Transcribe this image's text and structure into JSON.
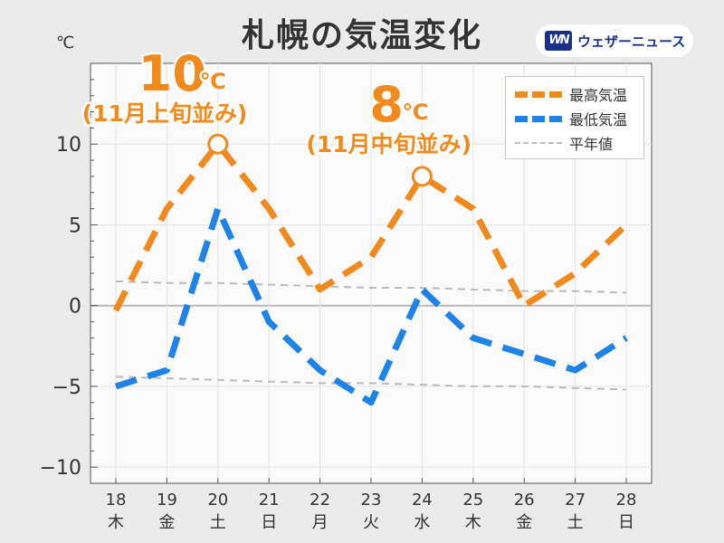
{
  "header": {
    "title": "札幌の気温変化",
    "unit": "℃",
    "logo_mark": "WN",
    "logo_text": "ウェザーニュース"
  },
  "legend": [
    {
      "label": "最高気温",
      "color": "#f08a1c",
      "style": "dashed-thick"
    },
    {
      "label": "最低気温",
      "color": "#1e82e6",
      "style": "dashed-thick"
    },
    {
      "label": "平年値",
      "color": "#bbbbbb",
      "style": "dashed-thin"
    }
  ],
  "callouts": [
    {
      "value": "10",
      "unit": "℃",
      "note": "(11月上旬並み)",
      "x_index": 2,
      "y": 10
    },
    {
      "value": "8",
      "unit": "℃",
      "note": "(11月中旬並み)",
      "x_index": 6,
      "y": 8
    }
  ],
  "chart_data": {
    "type": "line",
    "categories": [
      "18",
      "19",
      "20",
      "21",
      "22",
      "23",
      "24",
      "25",
      "26",
      "27",
      "28"
    ],
    "weekdays": [
      "木",
      "金",
      "土",
      "日",
      "月",
      "火",
      "水",
      "木",
      "金",
      "土",
      "日"
    ],
    "weekday_colors": [
      "#333333",
      "#333333",
      "#2a7fd4",
      "#d83535",
      "#333333",
      "#333333",
      "#333333",
      "#333333",
      "#333333",
      "#2a7fd4",
      "#d83535"
    ],
    "series": [
      {
        "name": "最高気温",
        "color": "#f08a1c",
        "values": [
          -0.3,
          6,
          10,
          6,
          1,
          3,
          8,
          6,
          0,
          2,
          5
        ]
      },
      {
        "name": "最低気温",
        "color": "#1e82e6",
        "values": [
          -5,
          -4,
          6,
          -1,
          -4,
          -6,
          1,
          -2,
          -3,
          -4,
          -2
        ]
      },
      {
        "name": "平年値",
        "color": "#bbbbbb",
        "values": [
          1.5,
          1.4,
          1.4,
          1.3,
          1.2,
          1.1,
          1.1,
          1.0,
          0.9,
          0.9,
          0.8
        ]
      },
      {
        "name": "平年値",
        "color": "#bbbbbb",
        "values": [
          -4.4,
          -4.5,
          -4.6,
          -4.7,
          -4.8,
          -4.8,
          -4.9,
          -5.0,
          -5.0,
          -5.1,
          -5.2
        ]
      }
    ],
    "yticks": [
      10,
      5,
      0,
      -5,
      -10
    ],
    "ytick_labels": [
      "10",
      "5",
      "0",
      "−5",
      "−10"
    ],
    "ylim": [
      -11,
      15
    ],
    "grid": true,
    "legend_position": "top-right"
  }
}
